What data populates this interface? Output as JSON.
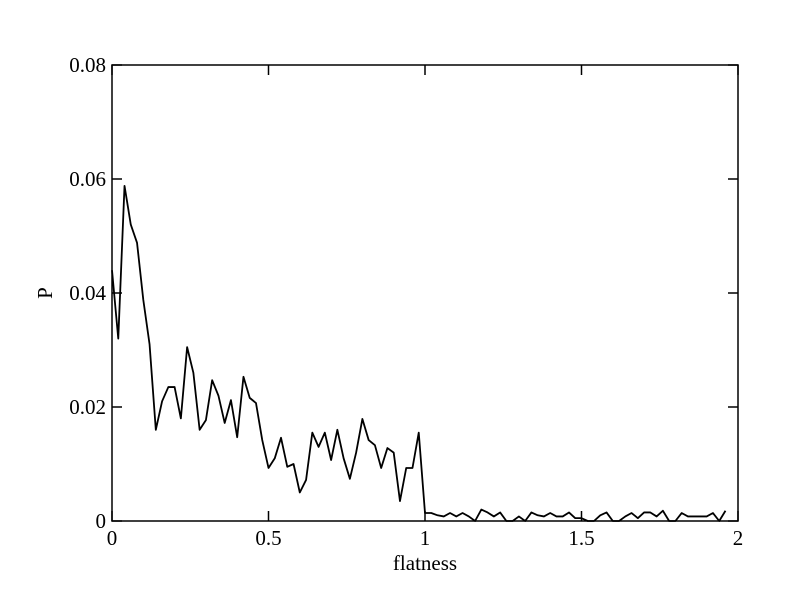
{
  "chart_data": {
    "type": "line",
    "xlabel": "flatness",
    "ylabel": "P",
    "x": [
      0,
      0.02,
      0.04,
      0.06,
      0.08,
      0.1,
      0.12,
      0.14,
      0.16,
      0.18,
      0.2,
      0.22,
      0.24,
      0.26,
      0.28,
      0.3,
      0.32,
      0.34,
      0.36,
      0.38,
      0.4,
      0.42,
      0.44,
      0.46,
      0.48,
      0.5,
      0.52,
      0.54,
      0.56,
      0.58,
      0.6,
      0.62,
      0.64,
      0.66,
      0.68,
      0.7,
      0.72,
      0.74,
      0.76,
      0.78,
      0.8,
      0.82,
      0.84,
      0.86,
      0.88,
      0.9,
      0.92,
      0.94,
      0.96,
      0.98,
      1,
      1.02,
      1.04,
      1.06,
      1.08,
      1.1,
      1.12,
      1.14,
      1.16,
      1.18,
      1.2,
      1.22,
      1.24,
      1.26,
      1.28,
      1.3,
      1.32,
      1.34,
      1.36,
      1.38,
      1.4,
      1.42,
      1.44,
      1.46,
      1.48,
      1.5,
      1.52,
      1.54,
      1.56,
      1.58,
      1.6,
      1.62,
      1.64,
      1.66,
      1.68,
      1.7,
      1.72,
      1.74,
      1.76,
      1.78,
      1.8,
      1.82,
      1.84,
      1.86,
      1.88,
      1.9,
      1.92,
      1.94,
      1.96
    ],
    "series": [
      {
        "color": "#000000",
        "values": [
          0.044,
          0.032,
          0.0588,
          0.052,
          0.0488,
          0.0388,
          0.031,
          0.016,
          0.021,
          0.0235,
          0.0235,
          0.018,
          0.0305,
          0.026,
          0.016,
          0.0177,
          0.0247,
          0.022,
          0.0172,
          0.0212,
          0.0147,
          0.0253,
          0.0216,
          0.0207,
          0.0142,
          0.0093,
          0.011,
          0.0146,
          0.0095,
          0.01,
          0.005,
          0.0072,
          0.0155,
          0.013,
          0.0155,
          0.0107,
          0.016,
          0.011,
          0.0074,
          0.012,
          0.0179,
          0.0142,
          0.0133,
          0.0093,
          0.0128,
          0.012,
          0.0035,
          0.0093,
          0.0093,
          0.0155,
          0.0014,
          0.0014,
          0.001,
          0.0008,
          0.0014,
          0.0008,
          0.0014,
          0.0008,
          0,
          0.002,
          0.0015,
          0.0008,
          0.0015,
          0,
          0,
          0.0008,
          0,
          0.0015,
          0.001,
          0.0008,
          0.0014,
          0.0008,
          0.0008,
          0.0015,
          0.0005,
          0.0005,
          0,
          0,
          0.001,
          0.0015,
          0,
          0,
          0.0008,
          0.0014,
          0.0005,
          0.0015,
          0.0015,
          0.0008,
          0.0018,
          0,
          0,
          0.0014,
          0.0008,
          0.0008,
          0.0008,
          0.0008,
          0.0014,
          0,
          0.0018
        ]
      }
    ],
    "xlim": [
      0,
      2
    ],
    "xticks": [
      0,
      0.5,
      1,
      1.5,
      2
    ],
    "ylim": [
      0,
      0.08
    ],
    "yticks": [
      0,
      0.02,
      0.04,
      0.06,
      0.08
    ]
  }
}
